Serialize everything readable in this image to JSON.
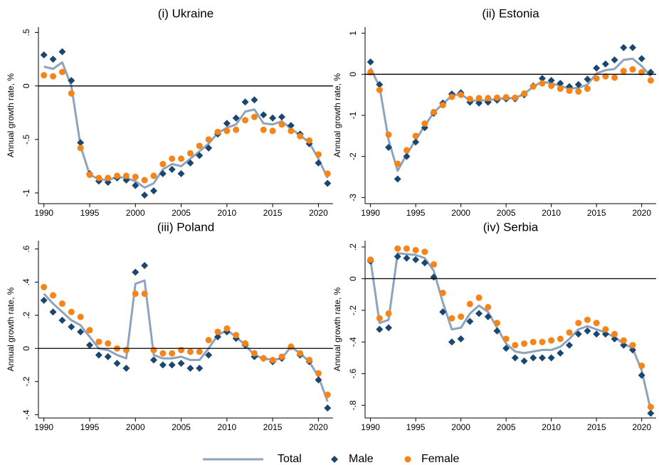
{
  "chart_data": [
    {
      "type": "line",
      "title": "(i) Ukraine",
      "y_label": "Annual growth rate, %",
      "x": [
        1990,
        1991,
        1992,
        1993,
        1994,
        1995,
        1996,
        1997,
        1998,
        1999,
        2000,
        2001,
        2002,
        2003,
        2004,
        2005,
        2006,
        2007,
        2008,
        2009,
        2010,
        2011,
        2012,
        2013,
        2014,
        2015,
        2016,
        2017,
        2018,
        2019,
        2020,
        2021
      ],
      "xlim": [
        1989.4,
        2021.6
      ],
      "xticks": [
        1990,
        1995,
        2000,
        2005,
        2010,
        2015,
        2020
      ],
      "ylim": [
        -1.1,
        0.55
      ],
      "yticks": [
        {
          "value": 0.5,
          "label": ".5"
        },
        0,
        {
          "value": -0.5,
          "label": "-.5"
        },
        -1
      ],
      "reference_line": 0,
      "series": [
        {
          "name": "Total",
          "color": "#8ea3bd",
          "style": "line",
          "values": [
            0.18,
            0.16,
            0.22,
            0.0,
            -0.56,
            -0.83,
            -0.87,
            -0.88,
            -0.85,
            -0.86,
            -0.89,
            -0.95,
            -0.91,
            -0.78,
            -0.73,
            -0.75,
            -0.68,
            -0.61,
            -0.54,
            -0.44,
            -0.39,
            -0.36,
            -0.24,
            -0.22,
            -0.35,
            -0.36,
            -0.33,
            -0.4,
            -0.46,
            -0.53,
            -0.68,
            -0.86
          ]
        },
        {
          "name": "Male",
          "color": "#1a476f",
          "style": "diamond",
          "values": [
            0.29,
            0.25,
            0.32,
            0.05,
            -0.53,
            -0.82,
            -0.89,
            -0.9,
            -0.86,
            -0.88,
            -0.93,
            -1.02,
            -0.98,
            -0.82,
            -0.78,
            -0.82,
            -0.72,
            -0.65,
            -0.58,
            -0.45,
            -0.35,
            -0.3,
            -0.15,
            -0.13,
            -0.27,
            -0.3,
            -0.29,
            -0.37,
            -0.45,
            -0.54,
            -0.72,
            -0.91
          ]
        },
        {
          "name": "Female",
          "color": "#f58518",
          "style": "circle",
          "values": [
            0.1,
            0.09,
            0.13,
            -0.07,
            -0.58,
            -0.83,
            -0.86,
            -0.86,
            -0.84,
            -0.84,
            -0.85,
            -0.88,
            -0.84,
            -0.73,
            -0.68,
            -0.68,
            -0.63,
            -0.56,
            -0.5,
            -0.43,
            -0.42,
            -0.41,
            -0.32,
            -0.29,
            -0.41,
            -0.42,
            -0.36,
            -0.42,
            -0.47,
            -0.51,
            -0.64,
            -0.82
          ]
        }
      ]
    },
    {
      "type": "line",
      "title": "(ii) Estonia",
      "y_label": "Annual growth rate, %",
      "x": [
        1990,
        1991,
        1992,
        1993,
        1994,
        1995,
        1996,
        1997,
        1998,
        1999,
        2000,
        2001,
        2002,
        2003,
        2004,
        2005,
        2006,
        2007,
        2008,
        2009,
        2010,
        2011,
        2012,
        2013,
        2014,
        2015,
        2016,
        2017,
        2018,
        2019,
        2020,
        2021
      ],
      "xlim": [
        1989.4,
        2021.6
      ],
      "xticks": [
        1990,
        1995,
        2000,
        2005,
        2010,
        2015,
        2020
      ],
      "ylim": [
        -3.15,
        1.15
      ],
      "yticks": [
        1,
        0,
        -1,
        -2,
        -3
      ],
      "reference_line": 0,
      "series": [
        {
          "name": "Total",
          "color": "#8ea3bd",
          "style": "line",
          "values": [
            0.15,
            -0.3,
            -1.6,
            -2.35,
            -1.95,
            -1.6,
            -1.25,
            -0.93,
            -0.72,
            -0.52,
            -0.48,
            -0.64,
            -0.64,
            -0.63,
            -0.6,
            -0.58,
            -0.58,
            -0.48,
            -0.3,
            -0.18,
            -0.22,
            -0.28,
            -0.35,
            -0.33,
            -0.25,
            0.02,
            0.1,
            0.13,
            0.35,
            0.38,
            0.2,
            -0.05
          ]
        },
        {
          "name": "Male",
          "color": "#1a476f",
          "style": "diamond",
          "values": [
            0.3,
            -0.25,
            -1.78,
            -2.55,
            -2.0,
            -1.65,
            -1.3,
            -0.95,
            -0.7,
            -0.48,
            -0.45,
            -0.68,
            -0.7,
            -0.68,
            -0.63,
            -0.6,
            -0.6,
            -0.5,
            -0.28,
            -0.1,
            -0.15,
            -0.22,
            -0.3,
            -0.25,
            -0.12,
            0.15,
            0.25,
            0.35,
            0.65,
            0.65,
            0.38,
            0.05
          ]
        },
        {
          "name": "Female",
          "color": "#f58518",
          "style": "circle",
          "values": [
            0.05,
            -0.38,
            -1.47,
            -2.18,
            -1.85,
            -1.5,
            -1.2,
            -0.92,
            -0.75,
            -0.55,
            -0.5,
            -0.6,
            -0.58,
            -0.58,
            -0.57,
            -0.56,
            -0.57,
            -0.47,
            -0.3,
            -0.22,
            -0.28,
            -0.35,
            -0.4,
            -0.42,
            -0.35,
            -0.1,
            -0.05,
            -0.08,
            0.08,
            0.12,
            0.05,
            -0.15
          ]
        }
      ]
    },
    {
      "type": "line",
      "title": "(iii) Poland",
      "y_label": "Annual growth rate, %",
      "x": [
        1990,
        1991,
        1992,
        1993,
        1994,
        1995,
        1996,
        1997,
        1998,
        1999,
        2000,
        2001,
        2002,
        2003,
        2004,
        2005,
        2006,
        2007,
        2008,
        2009,
        2010,
        2011,
        2012,
        2013,
        2014,
        2015,
        2016,
        2017,
        2018,
        2019,
        2020,
        2021
      ],
      "xlim": [
        1989.4,
        2021.6
      ],
      "xticks": [
        1990,
        1995,
        2000,
        2005,
        2010,
        2015,
        2020
      ],
      "ylim": [
        -0.42,
        0.65
      ],
      "yticks": [
        {
          "value": 0.6,
          "label": ".6"
        },
        {
          "value": 0.4,
          "label": ".4"
        },
        {
          "value": 0.2,
          "label": ".2"
        },
        0,
        {
          "value": -0.2,
          "label": "-.2"
        },
        {
          "value": -0.4,
          "label": "-.4"
        }
      ],
      "reference_line": 0,
      "series": [
        {
          "name": "Total",
          "color": "#8ea3bd",
          "style": "line",
          "values": [
            0.33,
            0.27,
            0.22,
            0.17,
            0.14,
            0.07,
            0.0,
            -0.01,
            -0.04,
            -0.06,
            0.39,
            0.41,
            -0.04,
            -0.06,
            -0.06,
            -0.05,
            -0.07,
            -0.07,
            0.0,
            0.08,
            0.11,
            0.07,
            0.02,
            -0.04,
            -0.06,
            -0.07,
            -0.06,
            0.01,
            -0.03,
            -0.08,
            -0.17,
            -0.32
          ]
        },
        {
          "name": "Male",
          "color": "#1a476f",
          "style": "diamond",
          "values": [
            0.29,
            0.22,
            0.17,
            0.13,
            0.1,
            0.02,
            -0.04,
            -0.05,
            -0.09,
            -0.12,
            0.46,
            0.5,
            -0.07,
            -0.1,
            -0.1,
            -0.09,
            -0.12,
            -0.12,
            -0.04,
            0.07,
            0.1,
            0.06,
            0.02,
            -0.05,
            -0.06,
            -0.08,
            -0.06,
            0.01,
            -0.04,
            -0.08,
            -0.19,
            -0.36
          ]
        },
        {
          "name": "Female",
          "color": "#f58518",
          "style": "circle",
          "values": [
            0.37,
            0.32,
            0.27,
            0.22,
            0.19,
            0.11,
            0.04,
            0.03,
            0.0,
            -0.01,
            0.33,
            0.33,
            -0.01,
            -0.03,
            -0.03,
            -0.01,
            -0.02,
            -0.02,
            0.05,
            0.1,
            0.12,
            0.08,
            0.03,
            -0.03,
            -0.06,
            -0.07,
            -0.05,
            0.01,
            -0.03,
            -0.07,
            -0.15,
            -0.28
          ]
        }
      ]
    },
    {
      "type": "line",
      "title": "(iv) Serbia",
      "y_label": "Annual growth rate, %",
      "x": [
        1990,
        1991,
        1992,
        1993,
        1994,
        1995,
        1996,
        1997,
        1998,
        1999,
        2000,
        2001,
        2002,
        2003,
        2004,
        2005,
        2006,
        2007,
        2008,
        2009,
        2010,
        2011,
        2012,
        2013,
        2014,
        2015,
        2016,
        2017,
        2018,
        2019,
        2020,
        2021
      ],
      "xlim": [
        1989.4,
        2021.6
      ],
      "xticks": [
        1990,
        1995,
        2000,
        2005,
        2010,
        2015,
        2020
      ],
      "ylim": [
        -0.88,
        0.24
      ],
      "yticks": [
        {
          "value": 0.2,
          "label": ".2"
        },
        0,
        {
          "value": -0.2,
          "label": "-.2"
        },
        {
          "value": -0.4,
          "label": "-.4"
        },
        {
          "value": -0.6,
          "label": "-.6"
        },
        {
          "value": -0.8,
          "label": "-.8"
        }
      ],
      "reference_line": 0,
      "series": [
        {
          "name": "Total",
          "color": "#8ea3bd",
          "style": "line",
          "values": [
            0.12,
            -0.28,
            -0.26,
            0.16,
            0.155,
            0.15,
            0.13,
            0.05,
            -0.15,
            -0.32,
            -0.31,
            -0.22,
            -0.17,
            -0.21,
            -0.31,
            -0.41,
            -0.46,
            -0.47,
            -0.46,
            -0.45,
            -0.45,
            -0.43,
            -0.38,
            -0.32,
            -0.3,
            -0.32,
            -0.34,
            -0.37,
            -0.41,
            -0.44,
            -0.58,
            -0.83
          ]
        },
        {
          "name": "Male",
          "color": "#1a476f",
          "style": "diamond",
          "values": [
            0.11,
            -0.32,
            -0.31,
            0.14,
            0.13,
            0.12,
            0.1,
            0.01,
            -0.21,
            -0.4,
            -0.38,
            -0.27,
            -0.22,
            -0.24,
            -0.33,
            -0.44,
            -0.5,
            -0.52,
            -0.5,
            -0.5,
            -0.5,
            -0.47,
            -0.42,
            -0.35,
            -0.33,
            -0.35,
            -0.35,
            -0.38,
            -0.42,
            -0.45,
            -0.61,
            -0.85
          ]
        },
        {
          "name": "Female",
          "color": "#f58518",
          "style": "circle",
          "values": [
            0.12,
            -0.25,
            -0.22,
            0.19,
            0.19,
            0.18,
            0.17,
            0.09,
            -0.09,
            -0.25,
            -0.24,
            -0.16,
            -0.12,
            -0.18,
            -0.28,
            -0.38,
            -0.42,
            -0.41,
            -0.4,
            -0.4,
            -0.39,
            -0.38,
            -0.34,
            -0.28,
            -0.26,
            -0.28,
            -0.32,
            -0.35,
            -0.39,
            -0.42,
            -0.55,
            -0.81
          ]
        }
      ]
    }
  ]
}
